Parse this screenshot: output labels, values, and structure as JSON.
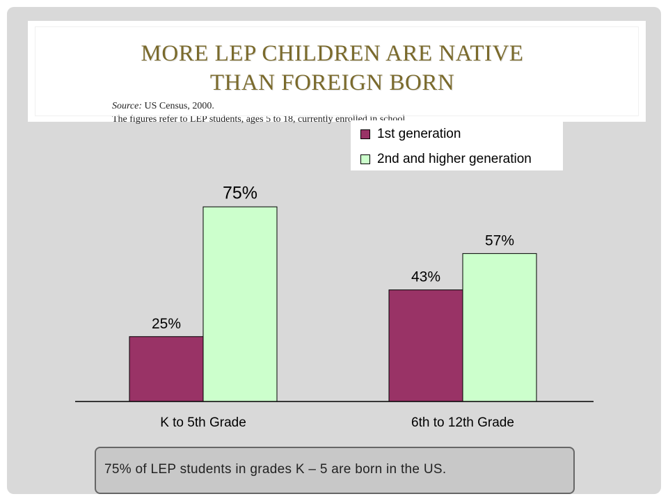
{
  "slide": {
    "title_line1": "MORE LEP CHILDREN ARE NATIVE",
    "title_line2": "THAN FOREIGN BORN",
    "source_label": "Source:",
    "source_value": " US Census, 2000.",
    "note": "The figures refer to LEP students, ages 5 to 18, currently enrolled in school.",
    "callout": "75% of LEP students in grades K – 5 are born in the US."
  },
  "colors": {
    "first_gen": "#993366",
    "second_gen": "#ccffcc"
  },
  "chart_data": {
    "type": "bar",
    "categories": [
      "K to 5th Grade",
      "6th to 12th Grade"
    ],
    "series": [
      {
        "name": "1st generation",
        "values": [
          25,
          43
        ],
        "labels": [
          "25%",
          "43%"
        ]
      },
      {
        "name": "2nd and higher generation",
        "values": [
          75,
          57
        ],
        "labels": [
          "75%",
          "57%"
        ]
      }
    ],
    "ylim": [
      0,
      100
    ],
    "grid": false,
    "legend": "top-right"
  }
}
